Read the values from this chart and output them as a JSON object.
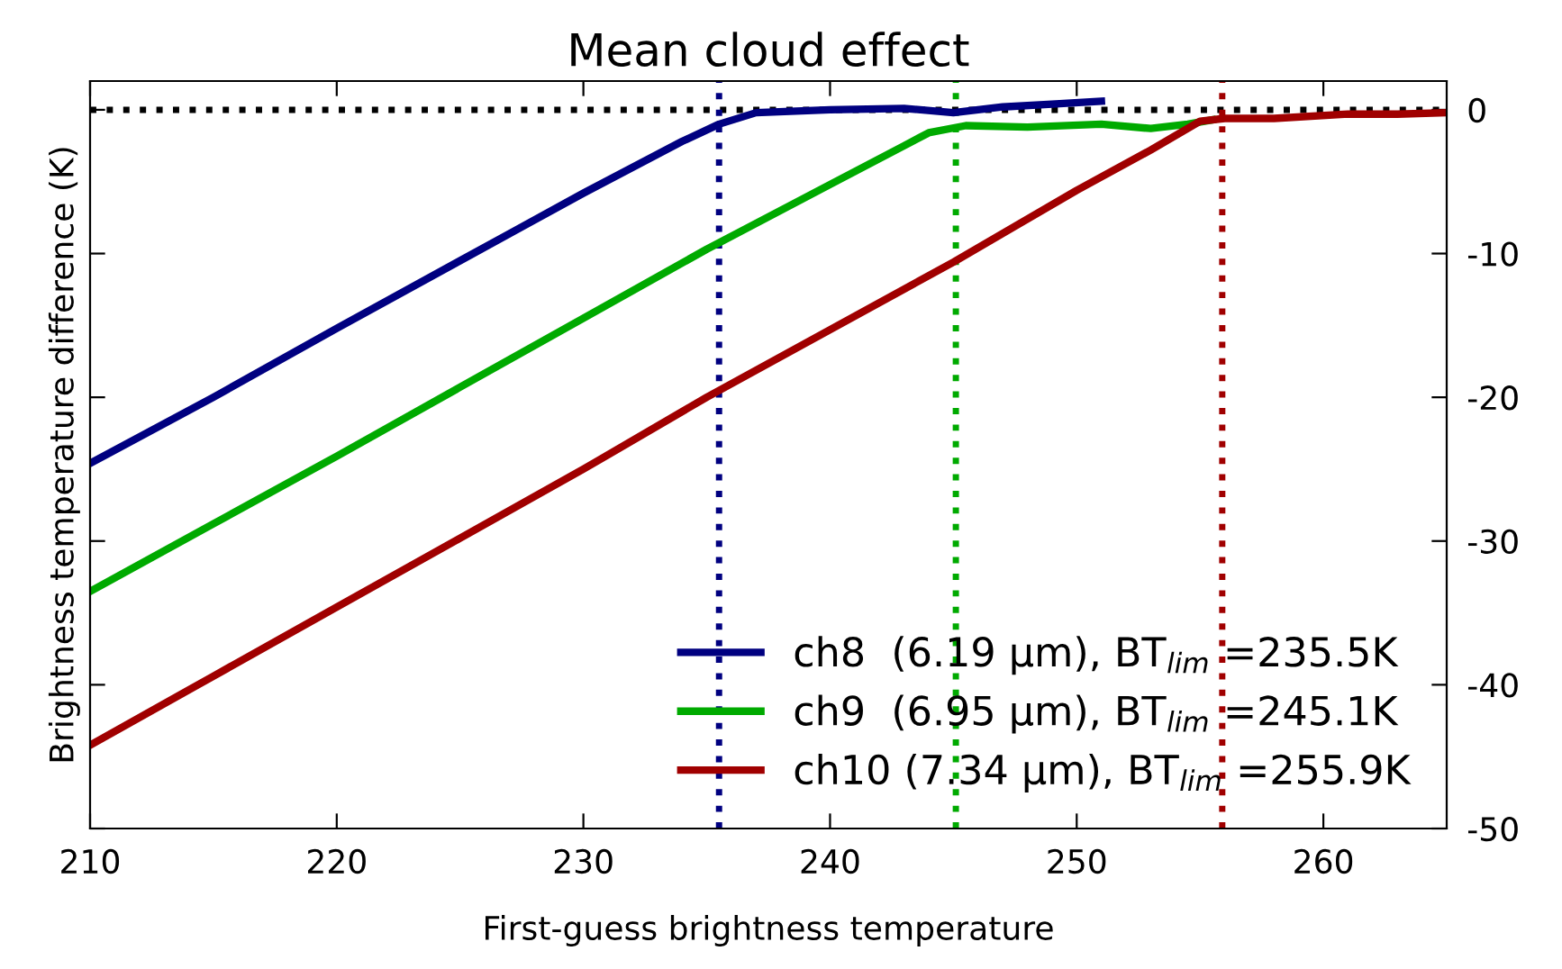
{
  "chart_data": {
    "type": "line",
    "title": "Mean cloud effect",
    "xlabel": "First-guess brightness temperature",
    "ylabel": "Brightness temperature difference (K)",
    "xlim": [
      210,
      265
    ],
    "ylim": [
      -50,
      2
    ],
    "xticks": [
      210,
      220,
      230,
      240,
      250,
      260
    ],
    "yticks": [
      0,
      -10,
      -20,
      -30,
      -40,
      -50
    ],
    "grid": false,
    "legend": "bottom right",
    "marker": "none",
    "line_style": "solid",
    "series": [
      {
        "name": "ch8  (6.19 µm), BT$_{lim}$ =235.5K",
        "color": "#000080",
        "x": [
          210,
          215,
          220,
          225,
          230,
          234,
          235.5,
          237,
          240,
          243,
          245,
          247,
          249,
          251
        ],
        "values": [
          -24.6,
          -20,
          -15.2,
          -10.5,
          -5.8,
          -2.2,
          -1.0,
          -0.2,
          0.0,
          0.1,
          -0.2,
          0.2,
          0.4,
          0.6
        ]
      },
      {
        "name": "ch9  (6.95 µm), BT$_{lim}$ =245.1K",
        "color": "#00aa00",
        "x": [
          210,
          215,
          220,
          225,
          230,
          235,
          240,
          243,
          244,
          245.5,
          248,
          251,
          253,
          254.5,
          255.5
        ],
        "values": [
          -33.5,
          -28.8,
          -24.1,
          -19.3,
          -14.5,
          -9.7,
          -5.2,
          -2.5,
          -1.6,
          -1.1,
          -1.2,
          -1.0,
          -1.3,
          -1.0,
          -0.7
        ]
      },
      {
        "name": "ch10 (7.34 µm), BT$_{lim}$ =255.9K",
        "color": "#a00000",
        "x": [
          210,
          215,
          220,
          225,
          230,
          235,
          240,
          245,
          250,
          253,
          255,
          256,
          258,
          261,
          263,
          265
        ],
        "values": [
          -44.2,
          -39.4,
          -34.6,
          -29.8,
          -25,
          -20,
          -15.3,
          -10.6,
          -5.6,
          -2.8,
          -0.8,
          -0.6,
          -0.6,
          -0.3,
          -0.3,
          -0.2
        ]
      }
    ],
    "ref_lines": [
      {
        "axis": "y",
        "value": 0,
        "color": "#000000",
        "line_style": "dotted"
      },
      {
        "axis": "x",
        "value": 235.5,
        "color": "#000080",
        "line_style": "dotted"
      },
      {
        "axis": "x",
        "value": 245.1,
        "color": "#00aa00",
        "line_style": "dotted"
      },
      {
        "axis": "x",
        "value": 255.9,
        "color": "#a00000",
        "line_style": "dotted"
      }
    ]
  }
}
